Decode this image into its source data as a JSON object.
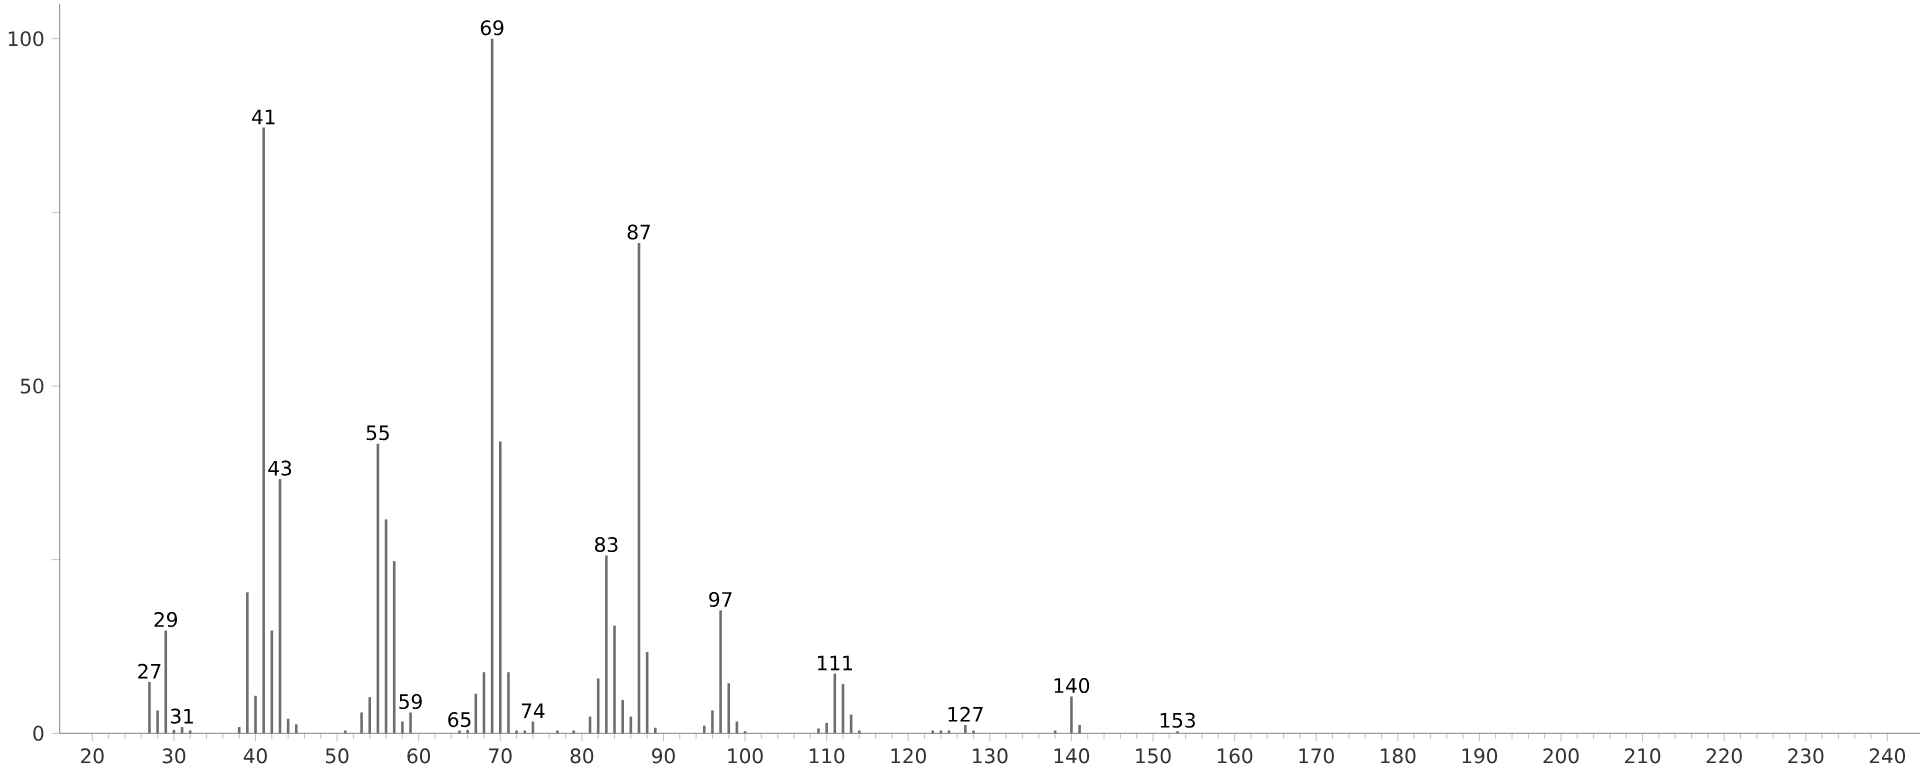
{
  "chart_data": {
    "type": "bar",
    "color": "#6e6e6e",
    "x": [
      27,
      28,
      29,
      30,
      31,
      32,
      38,
      39,
      40,
      41,
      42,
      43,
      44,
      45,
      51,
      53,
      54,
      55,
      56,
      57,
      58,
      59,
      65,
      66,
      67,
      68,
      69,
      70,
      71,
      72,
      73,
      74,
      77,
      79,
      81,
      82,
      83,
      84,
      85,
      86,
      87,
      88,
      89,
      95,
      96,
      97,
      98,
      99,
      100,
      109,
      110,
      111,
      112,
      113,
      114,
      123,
      124,
      125,
      127,
      128,
      138,
      140,
      141,
      153
    ],
    "values": [
      7.4,
      3.3,
      14.8,
      0.5,
      0.9,
      0.4,
      0.9,
      20.3,
      5.4,
      87.2,
      14.8,
      36.6,
      2.1,
      1.3,
      0.4,
      3.0,
      5.2,
      41.7,
      30.8,
      24.8,
      1.7,
      3.0,
      0.4,
      0.5,
      5.7,
      8.8,
      100,
      42.0,
      8.8,
      0.4,
      0.4,
      1.7,
      0.4,
      0.4,
      2.4,
      7.9,
      25.6,
      15.5,
      4.8,
      2.4,
      70.6,
      11.7,
      0.8,
      1.1,
      3.3,
      17.7,
      7.2,
      1.7,
      0.3,
      0.7,
      1.5,
      8.6,
      7.1,
      2.7,
      0.4,
      0.4,
      0.4,
      0.4,
      1.2,
      0.4,
      0.4,
      5.3,
      1.2,
      0.3
    ],
    "xlim": [
      16,
      244
    ],
    "ylim": [
      0,
      105
    ],
    "xticks": [
      20,
      30,
      40,
      50,
      60,
      70,
      80,
      90,
      100,
      110,
      120,
      130,
      140,
      150,
      160,
      170,
      180,
      190,
      200,
      210,
      220,
      230,
      240
    ],
    "yticks": [
      0,
      {
        "value": 25,
        "label": null
      },
      50,
      {
        "value": 75,
        "label": null
      },
      100
    ],
    "grid": false,
    "annotations": [
      {
        "text": "27",
        "x": 27,
        "y": 7.4
      },
      {
        "text": "29",
        "x": 29,
        "y": 14.8
      },
      {
        "text": "31",
        "x": 31,
        "y": 0.9
      },
      {
        "text": "41",
        "x": 41,
        "y": 87.2
      },
      {
        "text": "43",
        "x": 43,
        "y": 36.6
      },
      {
        "text": "55",
        "x": 55,
        "y": 41.7
      },
      {
        "text": "59",
        "x": 59,
        "y": 3.0
      },
      {
        "text": "65",
        "x": 65,
        "y": 0.4
      },
      {
        "text": "69",
        "x": 69,
        "y": 100
      },
      {
        "text": "74",
        "x": 74,
        "y": 1.7
      },
      {
        "text": "83",
        "x": 83,
        "y": 25.6
      },
      {
        "text": "87",
        "x": 87,
        "y": 70.6
      },
      {
        "text": "97",
        "x": 97,
        "y": 17.7
      },
      {
        "text": "111",
        "x": 111,
        "y": 8.6
      },
      {
        "text": "127",
        "x": 127,
        "y": 1.2
      },
      {
        "text": "140",
        "x": 140,
        "y": 5.3
      },
      {
        "text": "153",
        "x": 153,
        "y": 0.3
      }
    ]
  }
}
